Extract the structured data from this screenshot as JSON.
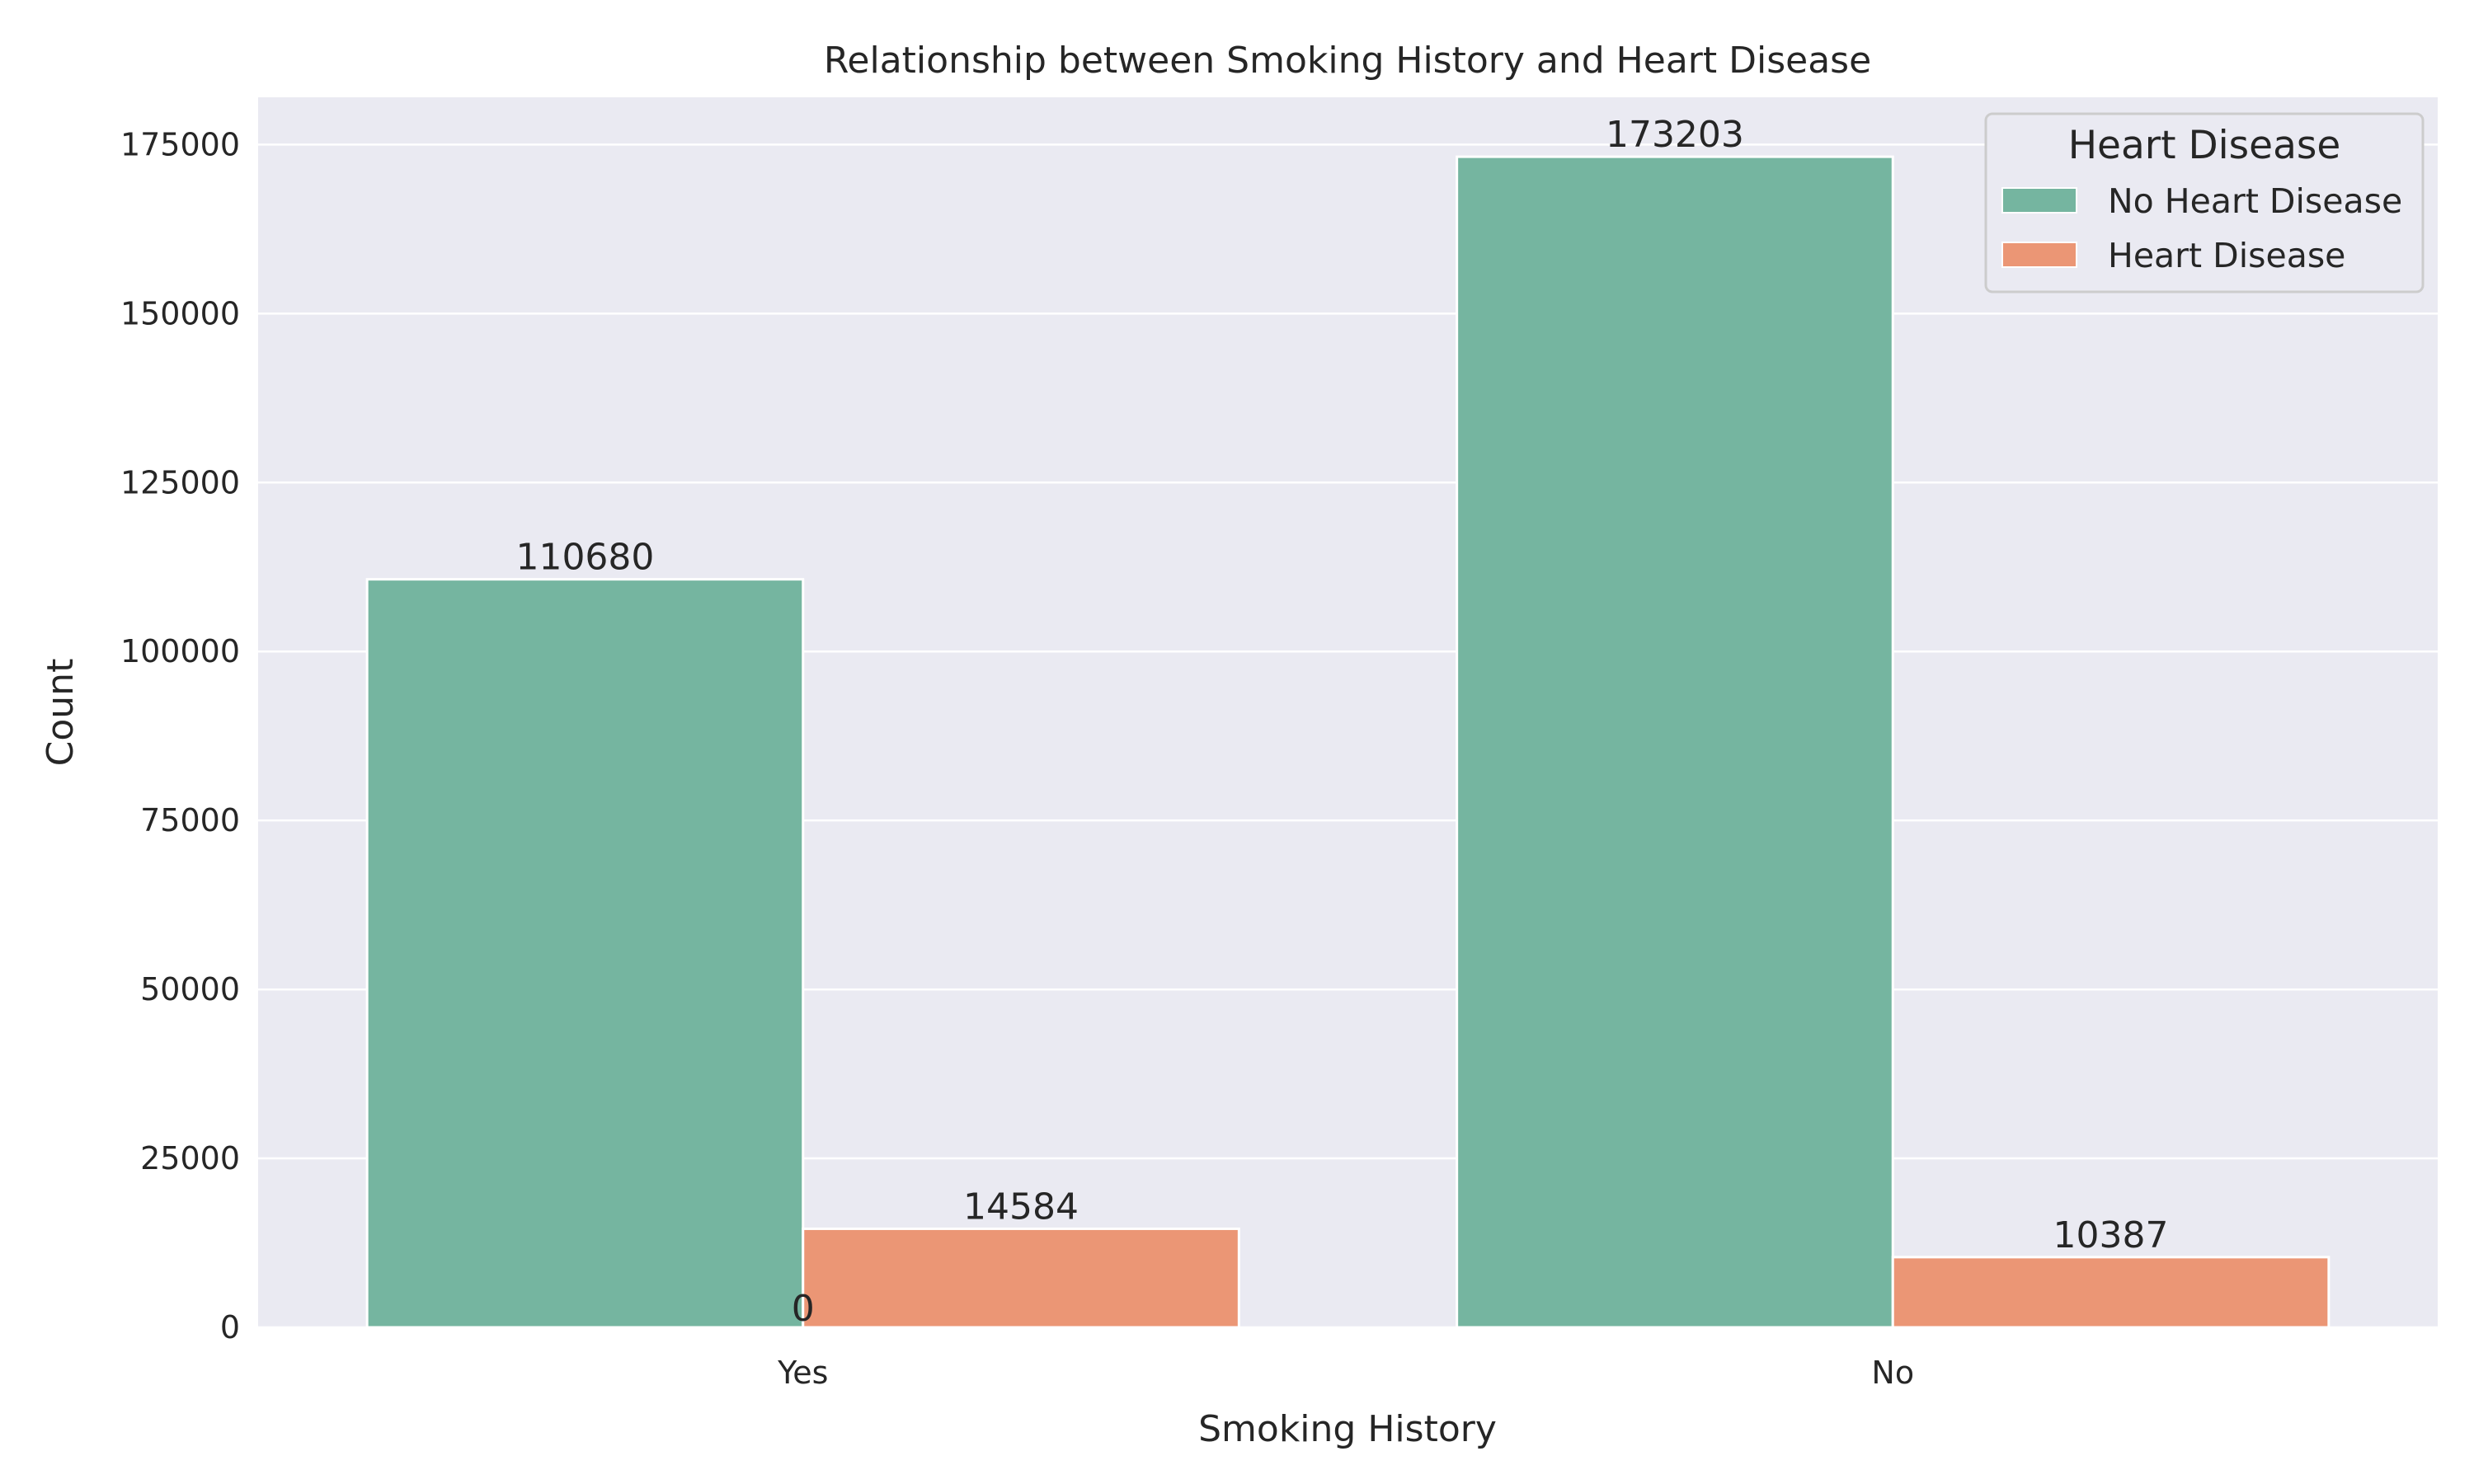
{
  "chart_data": {
    "type": "bar",
    "title": "Relationship between Smoking History and Heart Disease",
    "xlabel": "Smoking History",
    "ylabel": "Count",
    "categories": [
      "Yes",
      "No"
    ],
    "series": [
      {
        "name": "No Heart Disease",
        "values": [
          110680,
          173203
        ],
        "color": "#75b5a0"
      },
      {
        "name": "Heart Disease",
        "values": [
          14584,
          10387
        ],
        "color": "#eb9675"
      }
    ],
    "data_labels": [
      "110680",
      "14584",
      "173203",
      "10387",
      "0"
    ],
    "ylim": [
      0,
      182000
    ],
    "yticks": [
      0,
      25000,
      50000,
      75000,
      100000,
      125000,
      150000,
      175000
    ],
    "legend": {
      "title": "Heart Disease",
      "placement": "top-right"
    },
    "grid": true,
    "colors": {
      "plot_background": "#eaeaf2",
      "grid": "#ffffff",
      "text": "#262626"
    }
  }
}
